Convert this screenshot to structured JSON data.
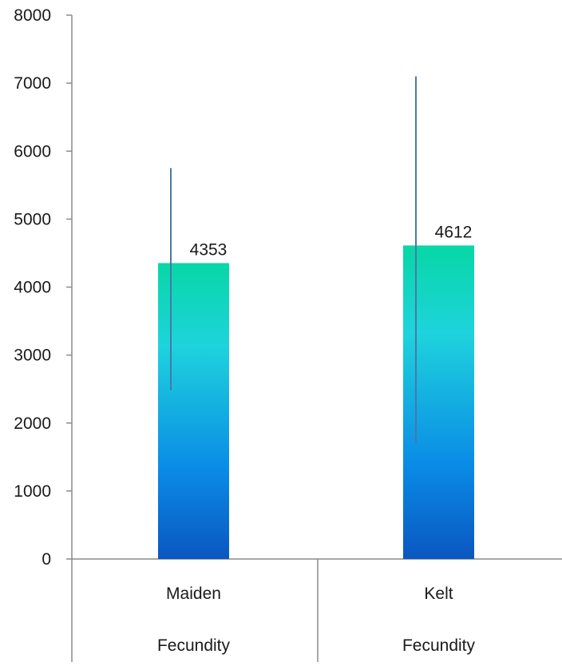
{
  "chart_data": {
    "type": "bar",
    "categories": [
      "Maiden",
      "Kelt"
    ],
    "category_groups": [
      "Fecundity",
      "Fecundity"
    ],
    "values": [
      4353,
      4612
    ],
    "data_labels": [
      "4353",
      "4612"
    ],
    "error_bars": [
      {
        "low": 2480,
        "high": 5750
      },
      {
        "low": 1700,
        "high": 7100
      }
    ],
    "ylim": [
      0,
      8000
    ],
    "y_ticks": [
      "0",
      "1000",
      "2000",
      "3000",
      "4000",
      "5000",
      "6000",
      "7000",
      "8000"
    ],
    "title": "",
    "xlabel": "",
    "ylabel": "",
    "grid": false,
    "legend": "none",
    "colors": {
      "bar_top": "#07D7A6",
      "bar_mid": "#1ED3DC",
      "bar_low": "#0A8BE6",
      "bar_bottom": "#0A57C0",
      "error_bar": "#4A78A8",
      "axis": "#8C8C8C"
    }
  }
}
